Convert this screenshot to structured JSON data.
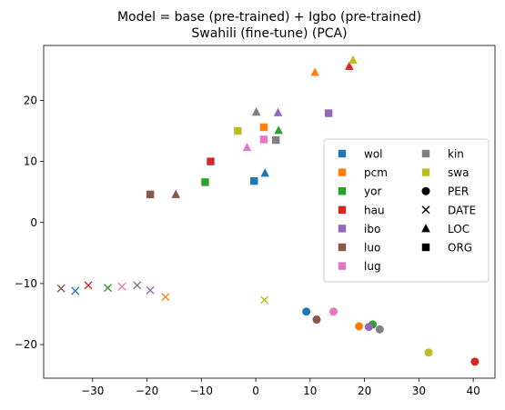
{
  "chart_data": {
    "type": "scatter",
    "title_line1": "Model = base (pre-trained) + Igbo (pre-trained)",
    "title_line2": "Swahili (fine-tune) (PCA)",
    "xlabel": "",
    "ylabel": "",
    "xlim": [
      -39,
      44
    ],
    "ylim": [
      -25.5,
      29
    ],
    "xticks": [
      -30,
      -20,
      -10,
      0,
      10,
      20,
      30,
      40
    ],
    "yticks": [
      -20,
      -10,
      0,
      10,
      20
    ],
    "grid": false,
    "legend_position": "center-right",
    "languages": [
      {
        "name": "wol",
        "color": "#1f77b4"
      },
      {
        "name": "pcm",
        "color": "#ff7f0e"
      },
      {
        "name": "yor",
        "color": "#2ca02c"
      },
      {
        "name": "hau",
        "color": "#d62728"
      },
      {
        "name": "ibo",
        "color": "#9467bd"
      },
      {
        "name": "luo",
        "color": "#8c564b"
      },
      {
        "name": "lug",
        "color": "#e377c2"
      },
      {
        "name": "kin",
        "color": "#7f7f7f"
      },
      {
        "name": "swa",
        "color": "#bcbd22"
      }
    ],
    "entity_types": [
      {
        "name": "PER",
        "marker": "circle"
      },
      {
        "name": "DATE",
        "marker": "x"
      },
      {
        "name": "LOC",
        "marker": "triangle"
      },
      {
        "name": "ORG",
        "marker": "square"
      }
    ],
    "points": [
      {
        "lang": "wol",
        "entity": "PER",
        "x": 9.3,
        "y": -14.6
      },
      {
        "lang": "pcm",
        "entity": "PER",
        "x": 19.0,
        "y": -17.0
      },
      {
        "lang": "yor",
        "entity": "PER",
        "x": 21.5,
        "y": -16.7
      },
      {
        "lang": "hau",
        "entity": "PER",
        "x": 40.3,
        "y": -22.8
      },
      {
        "lang": "ibo",
        "entity": "PER",
        "x": 20.8,
        "y": -17.1
      },
      {
        "lang": "luo",
        "entity": "PER",
        "x": 11.2,
        "y": -15.9
      },
      {
        "lang": "lug",
        "entity": "PER",
        "x": 14.3,
        "y": -14.6
      },
      {
        "lang": "kin",
        "entity": "PER",
        "x": 22.8,
        "y": -17.5
      },
      {
        "lang": "swa",
        "entity": "PER",
        "x": 31.8,
        "y": -21.3
      },
      {
        "lang": "wol",
        "entity": "DATE",
        "x": -33.2,
        "y": -11.2
      },
      {
        "lang": "pcm",
        "entity": "DATE",
        "x": -16.6,
        "y": -12.2
      },
      {
        "lang": "yor",
        "entity": "DATE",
        "x": -27.2,
        "y": -10.7
      },
      {
        "lang": "hau",
        "entity": "DATE",
        "x": -30.8,
        "y": -10.3
      },
      {
        "lang": "ibo",
        "entity": "DATE",
        "x": -19.4,
        "y": -11.1
      },
      {
        "lang": "luo",
        "entity": "DATE",
        "x": -35.8,
        "y": -10.8
      },
      {
        "lang": "lug",
        "entity": "DATE",
        "x": -24.6,
        "y": -10.5
      },
      {
        "lang": "kin",
        "entity": "DATE",
        "x": -21.8,
        "y": -10.3
      },
      {
        "lang": "swa",
        "entity": "DATE",
        "x": 1.6,
        "y": -12.7
      },
      {
        "lang": "wol",
        "entity": "LOC",
        "x": 1.7,
        "y": 8.1
      },
      {
        "lang": "pcm",
        "entity": "LOC",
        "x": 10.9,
        "y": 24.6
      },
      {
        "lang": "yor",
        "entity": "LOC",
        "x": 4.2,
        "y": 15.1
      },
      {
        "lang": "hau",
        "entity": "LOC",
        "x": 17.2,
        "y": 25.6
      },
      {
        "lang": "ibo",
        "entity": "LOC",
        "x": 4.1,
        "y": 18.0
      },
      {
        "lang": "luo",
        "entity": "LOC",
        "x": -14.7,
        "y": 4.6
      },
      {
        "lang": "lug",
        "entity": "LOC",
        "x": -1.6,
        "y": 12.3
      },
      {
        "lang": "kin",
        "entity": "LOC",
        "x": 0.1,
        "y": 18.1
      },
      {
        "lang": "swa",
        "entity": "LOC",
        "x": 17.9,
        "y": 26.6
      },
      {
        "lang": "wol",
        "entity": "ORG",
        "x": -0.3,
        "y": 6.8
      },
      {
        "lang": "pcm",
        "entity": "ORG",
        "x": 1.5,
        "y": 15.6
      },
      {
        "lang": "yor",
        "entity": "ORG",
        "x": -9.3,
        "y": 6.6
      },
      {
        "lang": "hau",
        "entity": "ORG",
        "x": -8.3,
        "y": 10.0
      },
      {
        "lang": "ibo",
        "entity": "ORG",
        "x": 13.4,
        "y": 17.9
      },
      {
        "lang": "luo",
        "entity": "ORG",
        "x": -19.4,
        "y": 4.6
      },
      {
        "lang": "lug",
        "entity": "ORG",
        "x": 1.5,
        "y": 13.6
      },
      {
        "lang": "kin",
        "entity": "ORG",
        "x": 3.7,
        "y": 13.5
      },
      {
        "lang": "swa",
        "entity": "ORG",
        "x": -3.3,
        "y": 15.0
      }
    ]
  }
}
